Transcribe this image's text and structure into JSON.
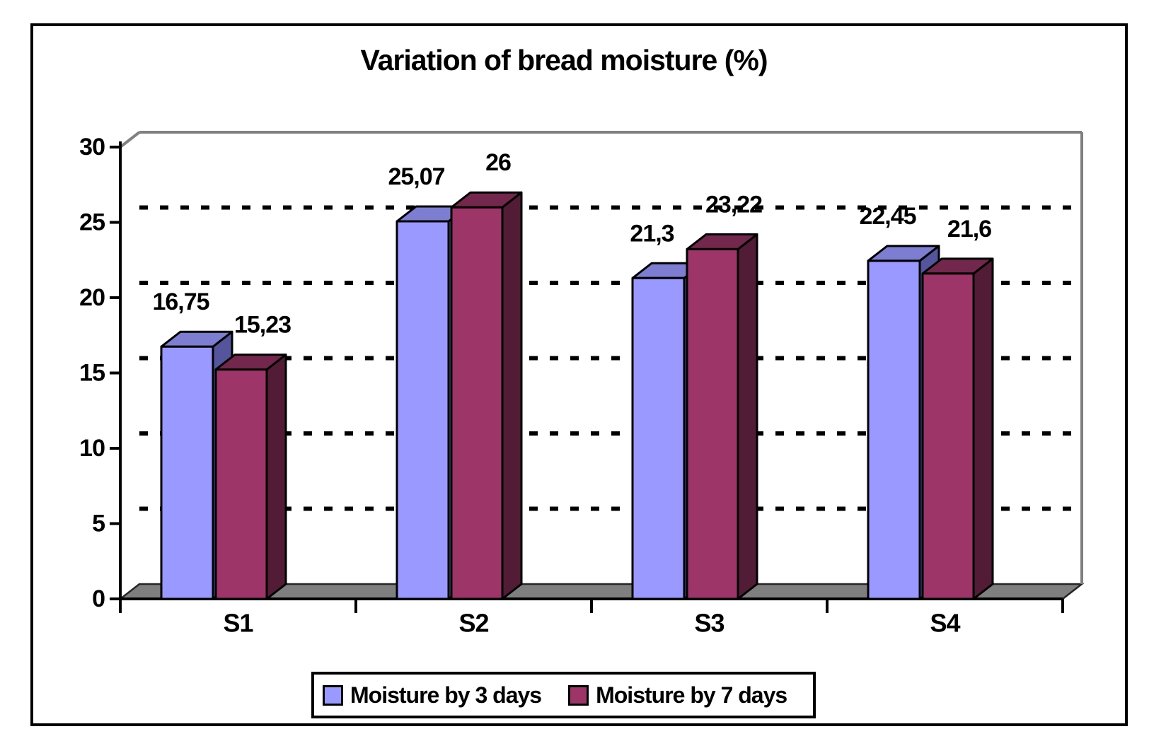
{
  "figure": {
    "background": "#ffffff",
    "border_color": "#000000"
  },
  "chart_data": {
    "type": "bar",
    "style": "3d-bars",
    "title": "Variation of bread moisture (%)",
    "categories": [
      "S1",
      "S2",
      "S3",
      "S4"
    ],
    "series": [
      {
        "name": "Moisture by 3 days",
        "values": [
          16.75,
          25.07,
          21.3,
          22.45
        ],
        "labels": [
          "16,75",
          "25,07",
          "21,3",
          "22,45"
        ],
        "color_front": "#9999ff",
        "color_top": "#7d7dd2",
        "color_side": "#55559d"
      },
      {
        "name": "Moisture by 7 days",
        "values": [
          15.23,
          26,
          23.22,
          21.6
        ],
        "labels": [
          "15,23",
          "26",
          "23,22",
          "21,6"
        ],
        "color_front": "#9d3569",
        "color_top": "#74274c",
        "color_side": "#521c37"
      }
    ],
    "xlabel": "",
    "ylabel": "",
    "ylim": [
      0,
      30
    ],
    "y_ticks": [
      0,
      5,
      10,
      15,
      20,
      25,
      30
    ],
    "y_tick_labels": [
      "0",
      "5",
      "10",
      "15",
      "20",
      "25",
      "30"
    ],
    "grid": "horizontal dashed black lines every 5 units",
    "legend_position": "bottom",
    "decimal_separator": ",",
    "wall_color": "#808080",
    "floor_color": "#7f7f7f",
    "axis_color": "#000000",
    "text_color": "#000000"
  }
}
